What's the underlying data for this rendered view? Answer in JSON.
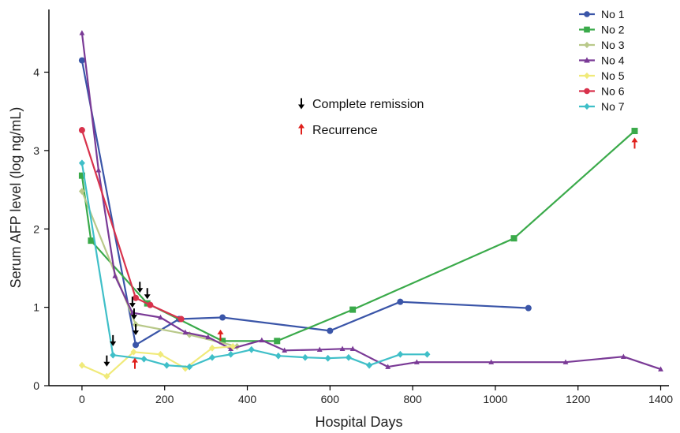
{
  "chart_data": {
    "type": "line",
    "xlabel": "Hospital Days",
    "ylabel": "Serum AFP level (log ng/mL)",
    "xlim": [
      -80,
      1420
    ],
    "ylim": [
      0,
      4.8
    ],
    "xticks": [
      0,
      200,
      400,
      600,
      800,
      1000,
      1200,
      1400
    ],
    "yticks": [
      0,
      1,
      2,
      3,
      4
    ],
    "grid": false,
    "legend_position": "top-right",
    "series": [
      {
        "name": "No 1",
        "color": "#3a55a8",
        "marker": "circle",
        "x": [
          0,
          130,
          235,
          340,
          600,
          770,
          1080
        ],
        "y": [
          4.15,
          0.52,
          0.85,
          0.87,
          0.7,
          1.07,
          0.99
        ]
      },
      {
        "name": "No 2",
        "color": "#3aaa4a",
        "marker": "square",
        "x": [
          0,
          22,
          158,
          340,
          472,
          655,
          1045,
          1337
        ],
        "y": [
          2.68,
          1.85,
          1.05,
          0.57,
          0.57,
          0.97,
          1.88,
          3.25
        ]
      },
      {
        "name": "No 3",
        "color": "#b9c98a",
        "marker": "diamond",
        "x": [
          0,
          130,
          260,
          375
        ],
        "y": [
          2.48,
          0.78,
          0.65,
          0.5
        ]
      },
      {
        "name": "No 4",
        "color": "#7a3a96",
        "marker": "triangle",
        "x": [
          0,
          40,
          80,
          122,
          190,
          250,
          305,
          360,
          435,
          490,
          575,
          630,
          655,
          740,
          810,
          990,
          1170,
          1310,
          1400
        ],
        "y": [
          4.5,
          2.75,
          1.4,
          0.93,
          0.87,
          0.68,
          0.62,
          0.47,
          0.58,
          0.45,
          0.46,
          0.47,
          0.47,
          0.24,
          0.3,
          0.3,
          0.3,
          0.37,
          0.21
        ]
      },
      {
        "name": "No 5",
        "color": "#f0ea7a",
        "marker": "diamond",
        "x": [
          0,
          60,
          125,
          190,
          250,
          315,
          365
        ],
        "y": [
          0.26,
          0.12,
          0.43,
          0.4,
          0.22,
          0.48,
          0.5
        ]
      },
      {
        "name": "No 6",
        "color": "#d8324c",
        "marker": "circle",
        "x": [
          0,
          130,
          165,
          240
        ],
        "y": [
          3.26,
          1.12,
          1.03,
          0.85
        ]
      },
      {
        "name": "No 7",
        "color": "#3fbfc8",
        "marker": "diamond",
        "x": [
          0,
          75,
          150,
          205,
          260,
          315,
          360,
          410,
          475,
          540,
          595,
          645,
          695,
          770,
          835
        ],
        "y": [
          2.84,
          0.39,
          0.34,
          0.26,
          0.24,
          0.36,
          0.4,
          0.46,
          0.38,
          0.36,
          0.35,
          0.36,
          0.26,
          0.4,
          0.4
        ]
      }
    ],
    "annotations": {
      "legend_items": [
        {
          "symbol": "down-arrow",
          "color": "#000000",
          "label": "Complete remission"
        },
        {
          "symbol": "up-arrow",
          "color": "#e0201c",
          "label": "Recurrence"
        }
      ],
      "remission_arrows": [
        {
          "x": 60,
          "y": 0.32
        },
        {
          "x": 75,
          "y": 0.58
        },
        {
          "x": 122,
          "y": 1.07
        },
        {
          "x": 126,
          "y": 0.92
        },
        {
          "x": 130,
          "y": 0.72
        },
        {
          "x": 140,
          "y": 1.26
        },
        {
          "x": 158,
          "y": 1.18
        }
      ],
      "recurrence_arrows": [
        {
          "x": 128,
          "y": 0.28
        },
        {
          "x": 335,
          "y": 0.64
        },
        {
          "x": 1337,
          "y": 3.09
        }
      ]
    }
  }
}
